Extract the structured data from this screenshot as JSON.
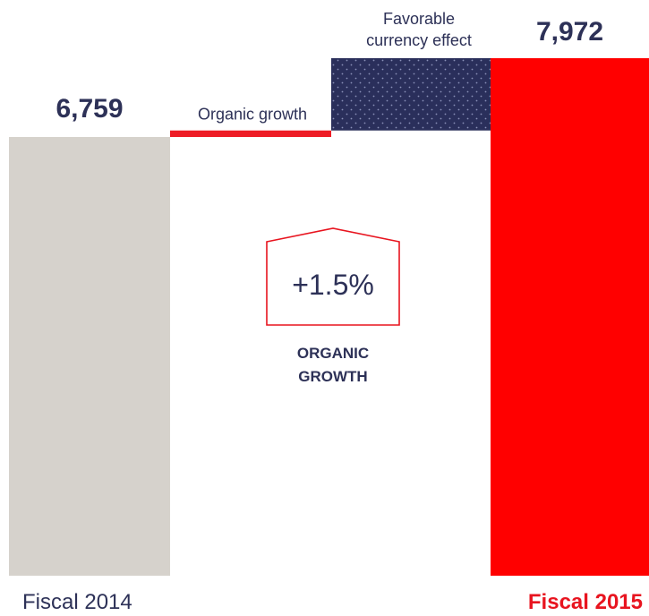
{
  "chart_data": {
    "type": "bar",
    "categories": [
      "Fiscal 2014",
      "Organic growth",
      "Favorable currency effect",
      "Fiscal 2015"
    ],
    "series": [
      {
        "values": [
          6759,
          100,
          1113,
          7972
        ]
      }
    ],
    "value_labels": [
      "6,759",
      "",
      "",
      "7,972"
    ],
    "step_labels": {
      "organic": "Organic growth",
      "currency_line1": "Favorable",
      "currency_line2": "currency effect"
    },
    "callout": {
      "value": "+1.5%",
      "caption_line1": "ORGANIC",
      "caption_line2": "GROWTH"
    },
    "x_labels": {
      "start": "Fiscal 2014",
      "end": "Fiscal 2015"
    },
    "colors": {
      "start_bar": "#D6D2CC",
      "end_bar": "#FF0000",
      "organic": "#EE1C25",
      "currency": "#2A2F5B",
      "currency_dots": "#8A90B8",
      "value_text": "#2D3157",
      "caption_text": "#2D3157",
      "callout_border": "#E8141F",
      "end_label": "#E8141F"
    }
  }
}
